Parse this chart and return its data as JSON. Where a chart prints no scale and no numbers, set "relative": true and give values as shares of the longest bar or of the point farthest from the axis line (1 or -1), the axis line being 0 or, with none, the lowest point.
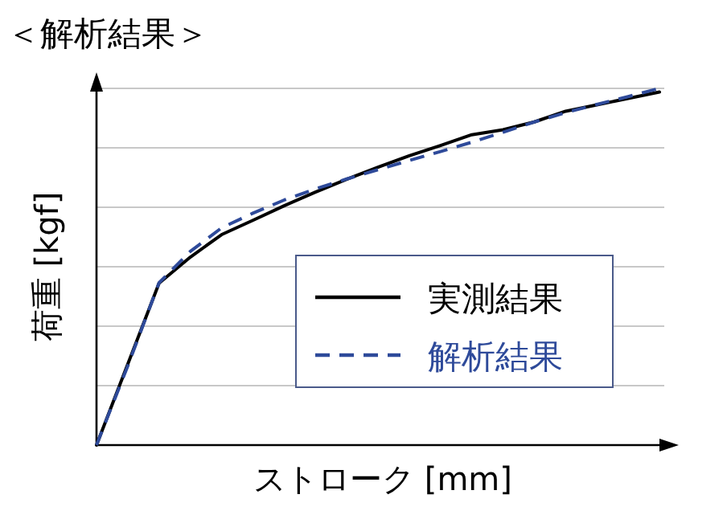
{
  "chart_data": {
    "type": "line",
    "title": "＜解析結果＞",
    "xlabel": "ストローク [mm]",
    "ylabel": "荷重 [kgf]",
    "relative": true,
    "grid": "y",
    "legend": "bottom right",
    "categories": [
      null,
      null,
      null,
      null,
      null,
      null,
      null,
      null,
      null,
      null,
      null,
      null,
      null,
      null,
      null,
      null,
      null,
      null,
      null
    ],
    "series": [
      {
        "name": "実測結果",
        "color": "#000000",
        "line_style": "solid",
        "values": [
          0,
          0.227,
          0.454,
          0.527,
          0.59,
          0.63,
          0.671,
          0.709,
          0.745,
          0.779,
          0.811,
          0.84,
          0.87,
          0.884,
          0.906,
          0.936,
          0.954,
          0.972,
          0.99
        ]
      },
      {
        "name": "解析結果",
        "color": "#2e4a9a",
        "line_style": "dashed",
        "values": [
          0,
          0.222,
          0.455,
          0.543,
          0.609,
          0.65,
          0.687,
          0.718,
          0.746,
          0.772,
          0.798,
          0.823,
          0.849,
          0.877,
          0.906,
          0.932,
          0.955,
          0.977,
          1.0
        ]
      }
    ]
  }
}
